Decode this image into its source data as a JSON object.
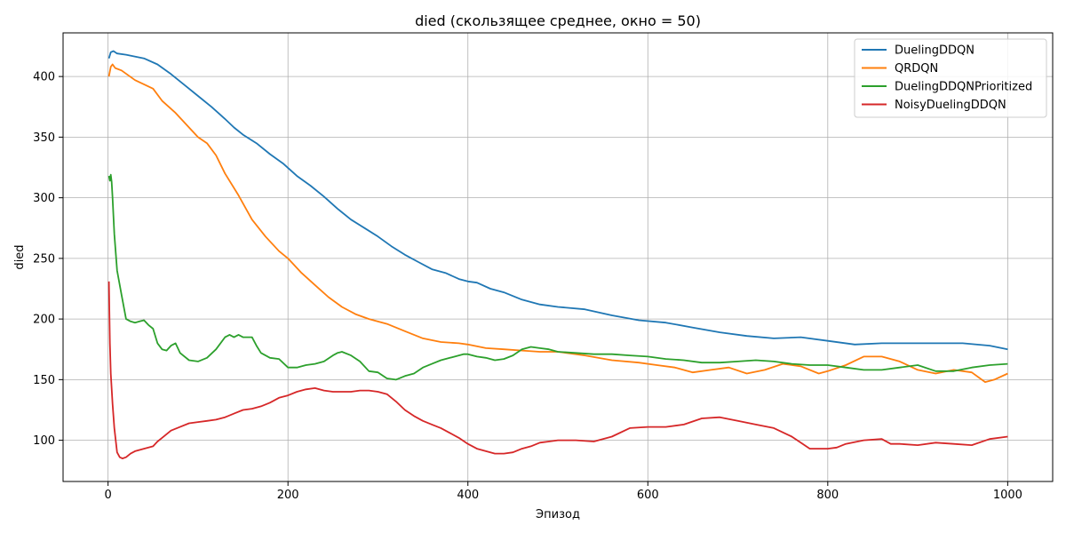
{
  "chart_data": {
    "type": "line",
    "title": "died (скользящее среднее, окно = 50)",
    "xlabel": "Эпизод",
    "ylabel": "died",
    "xlim": [
      -50,
      1050
    ],
    "ylim": [
      66,
      436
    ],
    "xticks": [
      0,
      200,
      400,
      600,
      800,
      1000
    ],
    "yticks": [
      100,
      150,
      200,
      250,
      300,
      350,
      400
    ],
    "grid": true,
    "legend_position": "top-right",
    "series": [
      {
        "name": "DuelingDDQN",
        "color": "#1f77b4",
        "x": [
          1,
          3,
          6,
          10,
          20,
          40,
          55,
          70,
          85,
          100,
          115,
          130,
          140,
          150,
          165,
          180,
          195,
          210,
          225,
          240,
          255,
          270,
          285,
          300,
          315,
          330,
          345,
          360,
          375,
          390,
          400,
          410,
          425,
          440,
          460,
          480,
          500,
          530,
          560,
          590,
          620,
          650,
          680,
          710,
          740,
          770,
          800,
          830,
          860,
          890,
          920,
          950,
          980,
          1000
        ],
        "y": [
          415,
          420,
          421,
          419,
          418,
          415,
          410,
          402,
          393,
          384,
          375,
          365,
          358,
          352,
          345,
          336,
          328,
          318,
          310,
          301,
          291,
          282,
          275,
          268,
          260,
          253,
          247,
          241,
          238,
          233,
          231,
          230,
          225,
          222,
          216,
          212,
          210,
          208,
          203,
          199,
          197,
          193,
          189,
          186,
          184,
          185,
          182,
          179,
          180,
          180,
          180,
          180,
          178,
          175
        ]
      },
      {
        "name": "QRDQN",
        "color": "#ff7f0e",
        "x": [
          1,
          3,
          5,
          8,
          15,
          30,
          50,
          60,
          75,
          90,
          100,
          110,
          120,
          130,
          145,
          160,
          175,
          190,
          200,
          215,
          230,
          245,
          260,
          275,
          290,
          310,
          330,
          350,
          370,
          390,
          400,
          420,
          440,
          460,
          480,
          500,
          530,
          560,
          590,
          610,
          630,
          650,
          670,
          690,
          710,
          730,
          750,
          770,
          790,
          800,
          820,
          840,
          860,
          880,
          900,
          920,
          940,
          960,
          975,
          985,
          1000
        ],
        "y": [
          400,
          408,
          410,
          407,
          405,
          397,
          390,
          380,
          370,
          358,
          350,
          345,
          335,
          320,
          302,
          282,
          268,
          256,
          250,
          238,
          228,
          218,
          210,
          204,
          200,
          196,
          190,
          184,
          181,
          180,
          179,
          176,
          175,
          174,
          173,
          173,
          170,
          166,
          164,
          162,
          160,
          156,
          158,
          160,
          155,
          158,
          163,
          161,
          155,
          157,
          162,
          169,
          169,
          165,
          158,
          155,
          158,
          156,
          148,
          150,
          155
        ]
      },
      {
        "name": "DuelingDDQNPrioritized",
        "color": "#2ca02c",
        "x": [
          1,
          2,
          3,
          4,
          5,
          7,
          10,
          15,
          20,
          25,
          30,
          35,
          40,
          45,
          50,
          55,
          60,
          65,
          70,
          75,
          80,
          90,
          100,
          110,
          120,
          130,
          135,
          140,
          145,
          150,
          160,
          165,
          170,
          180,
          190,
          200,
          210,
          220,
          230,
          240,
          250,
          255,
          260,
          270,
          280,
          290,
          300,
          310,
          320,
          330,
          340,
          350,
          360,
          370,
          380,
          390,
          395,
          400,
          410,
          420,
          430,
          440,
          450,
          460,
          470,
          480,
          490,
          500,
          520,
          540,
          560,
          580,
          600,
          620,
          640,
          660,
          680,
          700,
          720,
          740,
          760,
          780,
          800,
          820,
          840,
          860,
          880,
          900,
          920,
          940,
          960,
          980,
          1000
        ],
        "y": [
          318,
          314,
          319,
          313,
          300,
          270,
          240,
          220,
          200,
          198,
          197,
          198,
          199,
          195,
          192,
          180,
          175,
          174,
          178,
          180,
          172,
          166,
          165,
          168,
          175,
          185,
          187,
          185,
          187,
          185,
          185,
          178,
          172,
          168,
          167,
          160,
          160,
          162,
          163,
          165,
          170,
          172,
          173,
          170,
          165,
          157,
          156,
          151,
          150,
          153,
          155,
          160,
          163,
          166,
          168,
          170,
          171,
          171,
          169,
          168,
          166,
          167,
          170,
          175,
          177,
          176,
          175,
          173,
          172,
          171,
          171,
          170,
          169,
          167,
          166,
          164,
          164,
          165,
          166,
          165,
          163,
          162,
          162,
          160,
          158,
          158,
          160,
          162,
          157,
          157,
          160,
          162,
          163
        ]
      },
      {
        "name": "NoisyDuelingDDQN",
        "color": "#d62728",
        "x": [
          1,
          2,
          3,
          5,
          7,
          10,
          13,
          16,
          20,
          25,
          30,
          35,
          40,
          45,
          50,
          55,
          60,
          70,
          80,
          90,
          100,
          110,
          120,
          130,
          140,
          150,
          160,
          170,
          180,
          190,
          200,
          210,
          220,
          230,
          240,
          250,
          260,
          270,
          280,
          290,
          300,
          310,
          320,
          330,
          340,
          350,
          360,
          370,
          380,
          390,
          400,
          410,
          420,
          430,
          440,
          450,
          460,
          470,
          480,
          490,
          500,
          520,
          540,
          560,
          580,
          600,
          620,
          640,
          660,
          680,
          700,
          720,
          740,
          760,
          770,
          780,
          800,
          810,
          820,
          840,
          860,
          870,
          880,
          900,
          920,
          940,
          960,
          980,
          1000
        ],
        "y": [
          231,
          180,
          155,
          130,
          110,
          90,
          86,
          85,
          86,
          89,
          91,
          92,
          93,
          94,
          95,
          99,
          102,
          108,
          111,
          114,
          115,
          116,
          117,
          119,
          122,
          125,
          126,
          128,
          131,
          135,
          137,
          140,
          142,
          143,
          141,
          140,
          140,
          140,
          141,
          141,
          140,
          138,
          132,
          125,
          120,
          116,
          113,
          110,
          106,
          102,
          97,
          93,
          91,
          89,
          89,
          90,
          93,
          95,
          98,
          99,
          100,
          100,
          99,
          103,
          110,
          111,
          111,
          113,
          118,
          119,
          116,
          113,
          110,
          103,
          98,
          93,
          93,
          94,
          97,
          100,
          101,
          97,
          97,
          96,
          98,
          97,
          96,
          101,
          103
        ]
      }
    ]
  }
}
